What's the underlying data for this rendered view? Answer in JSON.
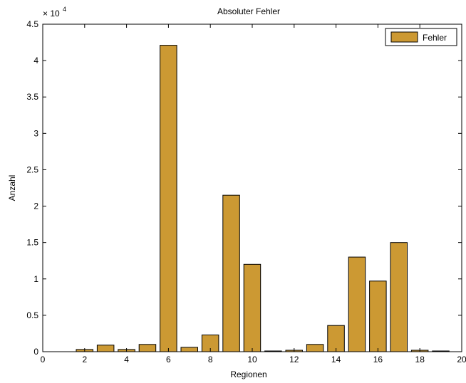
{
  "chart_data": {
    "type": "bar",
    "title": "Absoluter Fehler",
    "xlabel": "Regionen",
    "ylabel": "Anzahl",
    "xlim": [
      0,
      20
    ],
    "ylim": [
      0,
      4.5
    ],
    "y_multiplier_label": "× 10",
    "y_multiplier_exponent": "4",
    "x_ticks": [
      0,
      2,
      4,
      6,
      8,
      10,
      12,
      14,
      16,
      18,
      20
    ],
    "y_ticks": [
      0,
      0.5,
      1,
      1.5,
      2,
      2.5,
      3,
      3.5,
      4,
      4.5
    ],
    "y_tick_labels": [
      "0",
      "0.5",
      "1",
      "1.5",
      "2",
      "2.5",
      "3",
      "3.5",
      "4",
      "4.5"
    ],
    "grid": false,
    "legend_position": "top-right",
    "bar_color": "#cc9933",
    "series": [
      {
        "name": "Fehler",
        "x": [
          1,
          2,
          3,
          4,
          5,
          6,
          7,
          8,
          9,
          10,
          11,
          12,
          13,
          14,
          15,
          16,
          17,
          18,
          19
        ],
        "values": [
          0,
          0.03,
          0.09,
          0.03,
          0.1,
          4.21,
          0.06,
          0.23,
          2.15,
          1.2,
          0.01,
          0.02,
          0.1,
          0.36,
          1.3,
          0.97,
          1.5,
          0.02,
          0.01
        ]
      }
    ]
  }
}
